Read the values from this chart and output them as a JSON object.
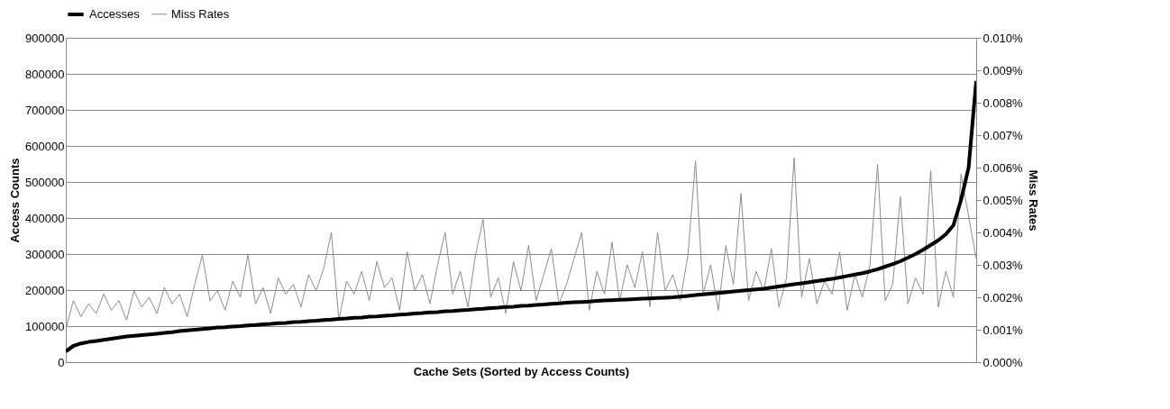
{
  "chart_data": {
    "type": "line",
    "xlabel": "Cache Sets (Sorted by Access Counts)",
    "ylabel": "Access  Counts",
    "y2label": "Miss Rates",
    "categories": [
      null,
      null,
      null,
      null,
      null,
      null,
      null,
      null,
      null,
      null,
      null,
      null,
      null,
      null,
      null,
      null,
      null,
      null,
      null,
      null,
      null,
      null,
      null,
      null,
      null,
      null,
      null,
      null,
      null,
      null,
      null,
      null,
      null,
      null,
      null,
      null,
      null,
      null,
      null,
      null,
      null,
      null,
      null,
      null,
      null,
      null,
      null,
      null,
      null,
      null,
      null,
      null,
      null,
      null,
      null,
      null,
      null,
      null,
      null,
      null,
      null,
      null,
      null,
      null,
      null,
      null,
      null,
      null,
      null,
      null,
      null,
      null,
      null,
      null,
      null,
      null,
      null,
      null,
      null,
      null,
      null,
      null,
      null,
      null,
      null,
      null,
      null,
      null,
      null,
      null,
      null,
      null,
      null,
      null,
      null,
      null,
      null,
      null,
      null,
      null,
      null,
      null,
      null,
      null,
      null,
      null,
      null,
      null,
      null,
      null,
      null,
      null,
      null,
      null,
      null,
      null,
      null,
      null,
      null,
      null,
      null
    ],
    "series": [
      {
        "name": "Accesses",
        "color": "#000000",
        "values": [
          30000,
          45000,
          52000,
          56000,
          59000,
          62000,
          65000,
          68000,
          71000,
          73000,
          75000,
          77000,
          79000,
          81000,
          83000,
          86000,
          88000,
          90000,
          92000,
          94000,
          96000,
          97000,
          99000,
          100000,
          102000,
          103000,
          105000,
          106000,
          108000,
          109000,
          111000,
          112000,
          114000,
          115000,
          117000,
          118000,
          120000,
          121000,
          123000,
          124000,
          126000,
          127000,
          129000,
          130000,
          132000,
          133000,
          135000,
          136000,
          138000,
          139000,
          141000,
          142000,
          144000,
          145000,
          147000,
          148000,
          150000,
          151000,
          153000,
          154000,
          156000,
          157000,
          159000,
          160000,
          162000,
          163000,
          165000,
          166000,
          167000,
          168000,
          170000,
          171000,
          172000,
          173000,
          174000,
          175000,
          176000,
          177000,
          178000,
          179000,
          180000,
          182000,
          184000,
          186000,
          188000,
          190000,
          192000,
          194000,
          196000,
          198000,
          200000,
          202000,
          204000,
          207000,
          210000,
          213000,
          216000,
          219000,
          222000,
          225000,
          228000,
          231000,
          235000,
          239000,
          243000,
          247000,
          252000,
          258000,
          265000,
          272000,
          280000,
          290000,
          300000,
          312000,
          325000,
          338000,
          355000,
          380000,
          450000,
          540000,
          780000
        ]
      },
      {
        "name": "Miss Rates",
        "color": "#8c8c8c",
        "axis": "y2",
        "values": [
          0.001,
          0.0019,
          0.0014,
          0.0018,
          0.0015,
          0.0021,
          0.0016,
          0.0019,
          0.0013,
          0.0022,
          0.0017,
          0.002,
          0.0015,
          0.0023,
          0.0018,
          0.0021,
          0.0014,
          0.0024,
          0.0033,
          0.0019,
          0.0022,
          0.0016,
          0.0025,
          0.002,
          0.0033,
          0.0018,
          0.0023,
          0.0015,
          0.0026,
          0.0021,
          0.0024,
          0.0017,
          0.0027,
          0.0022,
          0.0029,
          0.004,
          0.0013,
          0.0025,
          0.0021,
          0.0028,
          0.0019,
          0.0031,
          0.0023,
          0.0026,
          0.0016,
          0.0034,
          0.0022,
          0.0027,
          0.0018,
          0.003,
          0.004,
          0.0021,
          0.0028,
          0.0017,
          0.0033,
          0.0044,
          0.002,
          0.0026,
          0.0015,
          0.0031,
          0.0022,
          0.0036,
          0.0019,
          0.0027,
          0.0035,
          0.0018,
          0.0024,
          0.0032,
          0.004,
          0.0016,
          0.0028,
          0.0021,
          0.0037,
          0.0019,
          0.003,
          0.0023,
          0.0034,
          0.0017,
          0.004,
          0.0022,
          0.0027,
          0.0019,
          0.0033,
          0.0062,
          0.0021,
          0.003,
          0.0016,
          0.0036,
          0.0024,
          0.0052,
          0.0019,
          0.0028,
          0.0022,
          0.0035,
          0.0017,
          0.0026,
          0.0063,
          0.002,
          0.0032,
          0.0018,
          0.0025,
          0.0021,
          0.0034,
          0.0016,
          0.0027,
          0.002,
          0.003,
          0.0061,
          0.0019,
          0.0024,
          0.0051,
          0.0018,
          0.0026,
          0.0021,
          0.0059,
          0.0017,
          0.0028,
          0.002,
          0.0058,
          0.0045,
          0.0032
        ]
      }
    ],
    "ylim": [
      0,
      900000
    ],
    "yticks": [
      0,
      100000,
      200000,
      300000,
      400000,
      500000,
      600000,
      700000,
      800000,
      900000
    ],
    "y2lim": [
      0,
      0.01
    ],
    "y2ticks": [
      {
        "value": 0,
        "label": "0.000%"
      },
      {
        "value": 0.001,
        "label": "0.001%"
      },
      {
        "value": 0.002,
        "label": "0.002%"
      },
      {
        "value": 0.003,
        "label": "0.003%"
      },
      {
        "value": 0.004,
        "label": "0.004%"
      },
      {
        "value": 0.005,
        "label": "0.005%"
      },
      {
        "value": 0.006,
        "label": "0.006%"
      },
      {
        "value": 0.007,
        "label": "0.007%"
      },
      {
        "value": 0.008,
        "label": "0.008%"
      },
      {
        "value": 0.009,
        "label": "0.009%"
      },
      {
        "value": 0.01,
        "label": "0.010%"
      }
    ],
    "grid": "y",
    "legend": "top",
    "marker": "none",
    "line_style": "solid"
  }
}
